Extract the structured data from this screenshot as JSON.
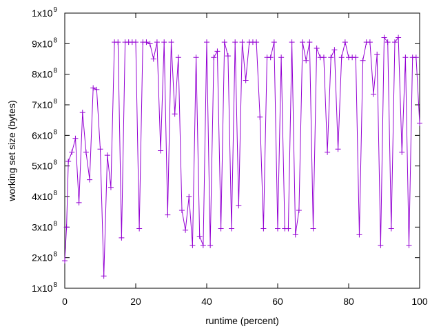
{
  "chart_data": {
    "type": "line",
    "xlabel": "runtime (percent)",
    "ylabel": "working set size (bytes)",
    "xlim": [
      0,
      100
    ],
    "ylim": [
      100000000,
      1000000000
    ],
    "grid": false,
    "legend": "none",
    "marker": "plus",
    "color": "#9400d3",
    "x_ticks": [
      {
        "value": 0,
        "label": "0"
      },
      {
        "value": 20,
        "label": "20"
      },
      {
        "value": 40,
        "label": "40"
      },
      {
        "value": 60,
        "label": "60"
      },
      {
        "value": 80,
        "label": "80"
      },
      {
        "value": 100,
        "label": "100"
      }
    ],
    "y_ticks": [
      {
        "value": 100000000,
        "mantissa": "1x10",
        "exponent": "8"
      },
      {
        "value": 200000000,
        "mantissa": "2x10",
        "exponent": "8"
      },
      {
        "value": 300000000,
        "mantissa": "3x10",
        "exponent": "8"
      },
      {
        "value": 400000000,
        "mantissa": "4x10",
        "exponent": "8"
      },
      {
        "value": 500000000,
        "mantissa": "5x10",
        "exponent": "8"
      },
      {
        "value": 600000000,
        "mantissa": "6x10",
        "exponent": "8"
      },
      {
        "value": 700000000,
        "mantissa": "7x10",
        "exponent": "8"
      },
      {
        "value": 800000000,
        "mantissa": "8x10",
        "exponent": "8"
      },
      {
        "value": 900000000,
        "mantissa": "9x10",
        "exponent": "8"
      },
      {
        "value": 1000000000,
        "mantissa": "1x10",
        "exponent": "9"
      }
    ],
    "series": [
      {
        "x": [
          0,
          0.5,
          1,
          2,
          3,
          4,
          5,
          6,
          7,
          8,
          9,
          10,
          11,
          12,
          13,
          14,
          15,
          16,
          17,
          18,
          19,
          20,
          21,
          22,
          23,
          24,
          25,
          26,
          27,
          28,
          29,
          30,
          31,
          32,
          33,
          34,
          35,
          36,
          37,
          38,
          39,
          40,
          41,
          42,
          43,
          44,
          45,
          46,
          47,
          48,
          49,
          50,
          51,
          52,
          53,
          54,
          55,
          56,
          57,
          58,
          59,
          60,
          61,
          62,
          63,
          64,
          65,
          66,
          67,
          68,
          69,
          70,
          71,
          72,
          73,
          74,
          75,
          76,
          77,
          78,
          79,
          80,
          81,
          82,
          83,
          84,
          85,
          86,
          87,
          88,
          89,
          90,
          91,
          92,
          93,
          94,
          95,
          96,
          97,
          98,
          99,
          100
        ],
        "y": [
          190000000,
          300000000,
          515000000,
          545000000,
          590000000,
          380000000,
          675000000,
          545000000,
          455000000,
          755000000,
          750000000,
          555000000,
          140000000,
          535000000,
          430000000,
          905000000,
          905000000,
          265000000,
          905000000,
          905000000,
          905000000,
          905000000,
          295000000,
          905000000,
          905000000,
          900000000,
          850000000,
          905000000,
          550000000,
          905000000,
          340000000,
          905000000,
          670000000,
          855000000,
          355000000,
          290000000,
          400000000,
          240000000,
          855000000,
          270000000,
          240000000,
          905000000,
          240000000,
          855000000,
          875000000,
          295000000,
          905000000,
          860000000,
          295000000,
          905000000,
          370000000,
          905000000,
          780000000,
          905000000,
          905000000,
          905000000,
          660000000,
          295000000,
          855000000,
          855000000,
          905000000,
          295000000,
          855000000,
          295000000,
          295000000,
          905000000,
          275000000,
          355000000,
          905000000,
          845000000,
          905000000,
          295000000,
          885000000,
          855000000,
          855000000,
          545000000,
          855000000,
          880000000,
          555000000,
          855000000,
          905000000,
          855000000,
          855000000,
          855000000,
          275000000,
          845000000,
          905000000,
          905000000,
          735000000,
          865000000,
          240000000,
          920000000,
          905000000,
          295000000,
          905000000,
          920000000,
          545000000,
          855000000,
          240000000,
          855000000,
          855000000,
          640000000
        ]
      }
    ]
  }
}
